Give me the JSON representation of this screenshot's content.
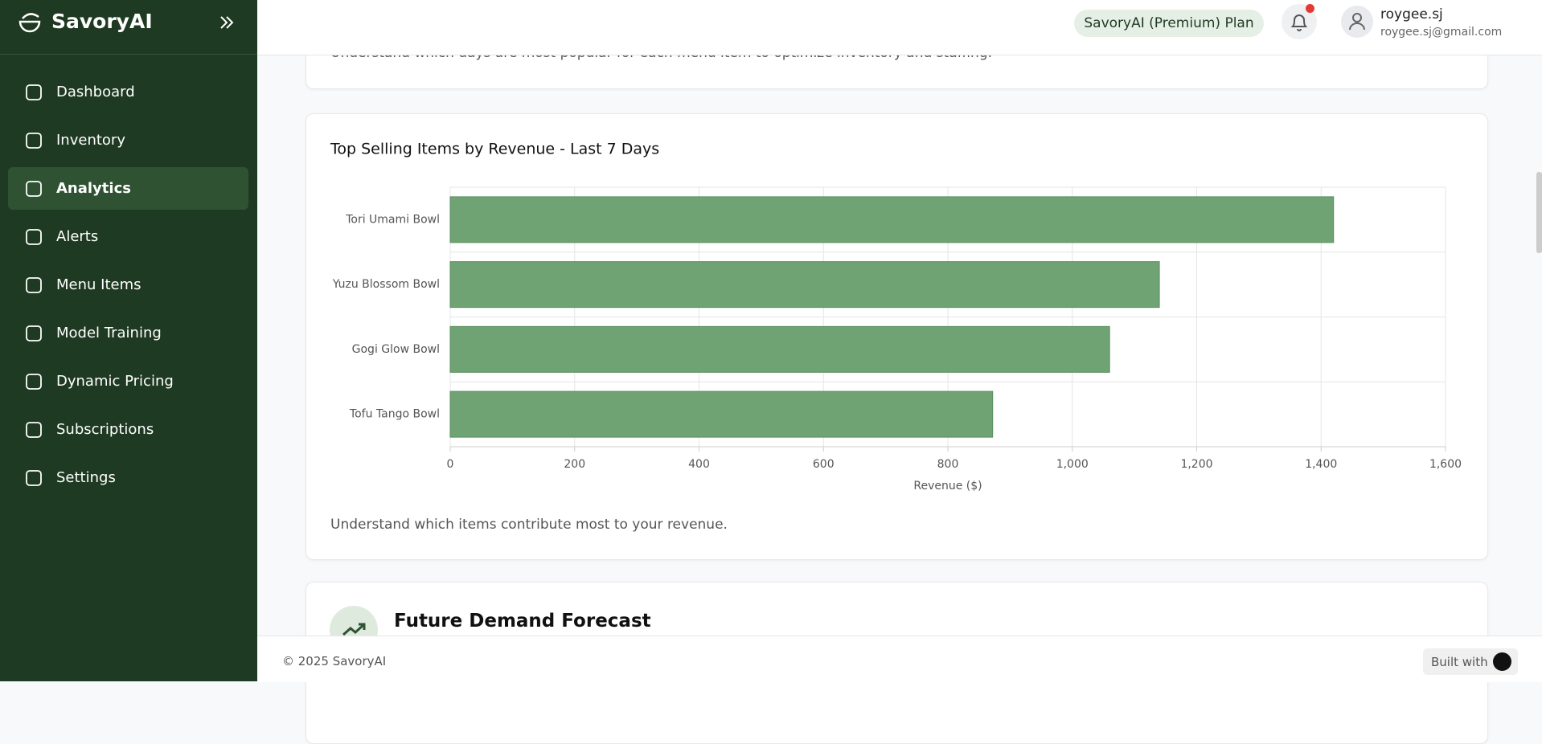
{
  "brand": "SavoryAI",
  "nav": [
    "Dashboard",
    "Inventory",
    "Analytics",
    "Alerts",
    "Menu Items",
    "Model Training",
    "Dynamic Pricing",
    "Subscriptions",
    "Settings"
  ],
  "header": {
    "plan": "SavoryAI (Premium) Plan",
    "user_name": "roygee.sj",
    "user_email": "roygee.sj@gmail.com"
  },
  "previous_card": {
    "caption": "Understand which days are most popular for each menu item to optimize inventory and staffing."
  },
  "chart_data": {
    "type": "hbar",
    "title": "Top Selling Items by Revenue - Last 7 Days",
    "categories": [
      "Tori Umami Bowl",
      "Yuzu Blossom Bowl",
      "Gogi Glow Bowl",
      "Tofu Tango Bowl"
    ],
    "values": [
      1420,
      1140,
      1060,
      872
    ],
    "color": "#6fa373",
    "x_label": "Revenue ($)",
    "xlim": [
      0,
      1600
    ],
    "xticks": [
      0,
      200,
      400,
      600,
      800,
      {
        "value": 1000,
        "label": "1,000"
      },
      {
        "value": 1200,
        "label": "1,200"
      },
      {
        "value": 1400,
        "label": "1,400"
      },
      {
        "value": 1600,
        "label": "1,600"
      }
    ],
    "grid": true,
    "caption": "Understand which items contribute most to your revenue."
  },
  "next_card": {
    "title": "Future Demand Forecast"
  },
  "footer": {
    "copyright": "© 2025 SavoryAI",
    "built_with": "Built with"
  }
}
